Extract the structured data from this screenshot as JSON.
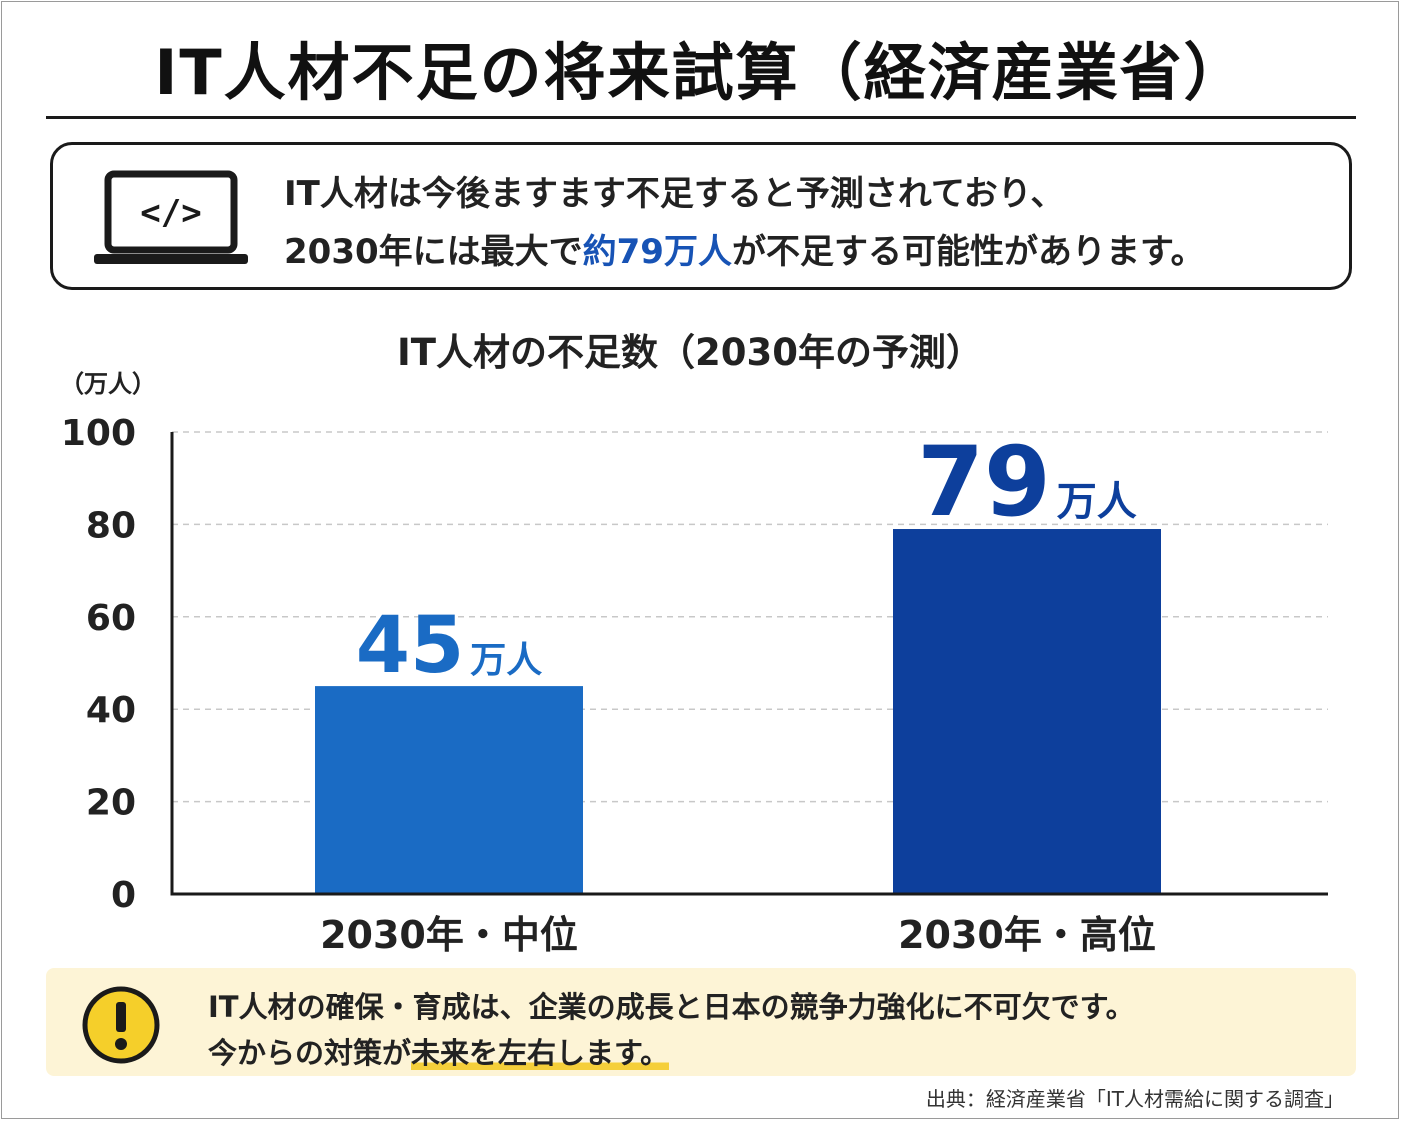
{
  "header": {
    "title": "IT人材不足の将来試算（経済産業省）"
  },
  "info": {
    "icon": "laptop-code-icon",
    "line1": "IT人材は今後ますます不足すると予測されており、",
    "line2_before": "2030年には最大で",
    "line2_highlight": "約79万人",
    "line2_after": "が不足する可能性があります。"
  },
  "chart_data": {
    "type": "bar",
    "title": "IT人材の不足数（2030年の予測）",
    "ylabel": "（万人）",
    "xlabel": "",
    "ylim": [
      0,
      100
    ],
    "yticks": [
      0,
      20,
      40,
      60,
      80,
      100
    ],
    "categories": [
      "2030年・中位",
      "2030年・高位"
    ],
    "values": [
      45,
      79
    ],
    "value_unit": "万人",
    "grid": true,
    "colors": [
      "#1a6bc4",
      "#0d3f9c"
    ]
  },
  "note": {
    "icon": "exclamation-icon",
    "line1": "IT人材の確保・育成は、企業の成長と日本の競争力強化に不可欠です。",
    "line2_before": "今からの対策が",
    "line2_highlight": "未来を左右します。"
  },
  "footer": {
    "source": "出典：経済産業省「IT人材需給に関する調査」"
  }
}
